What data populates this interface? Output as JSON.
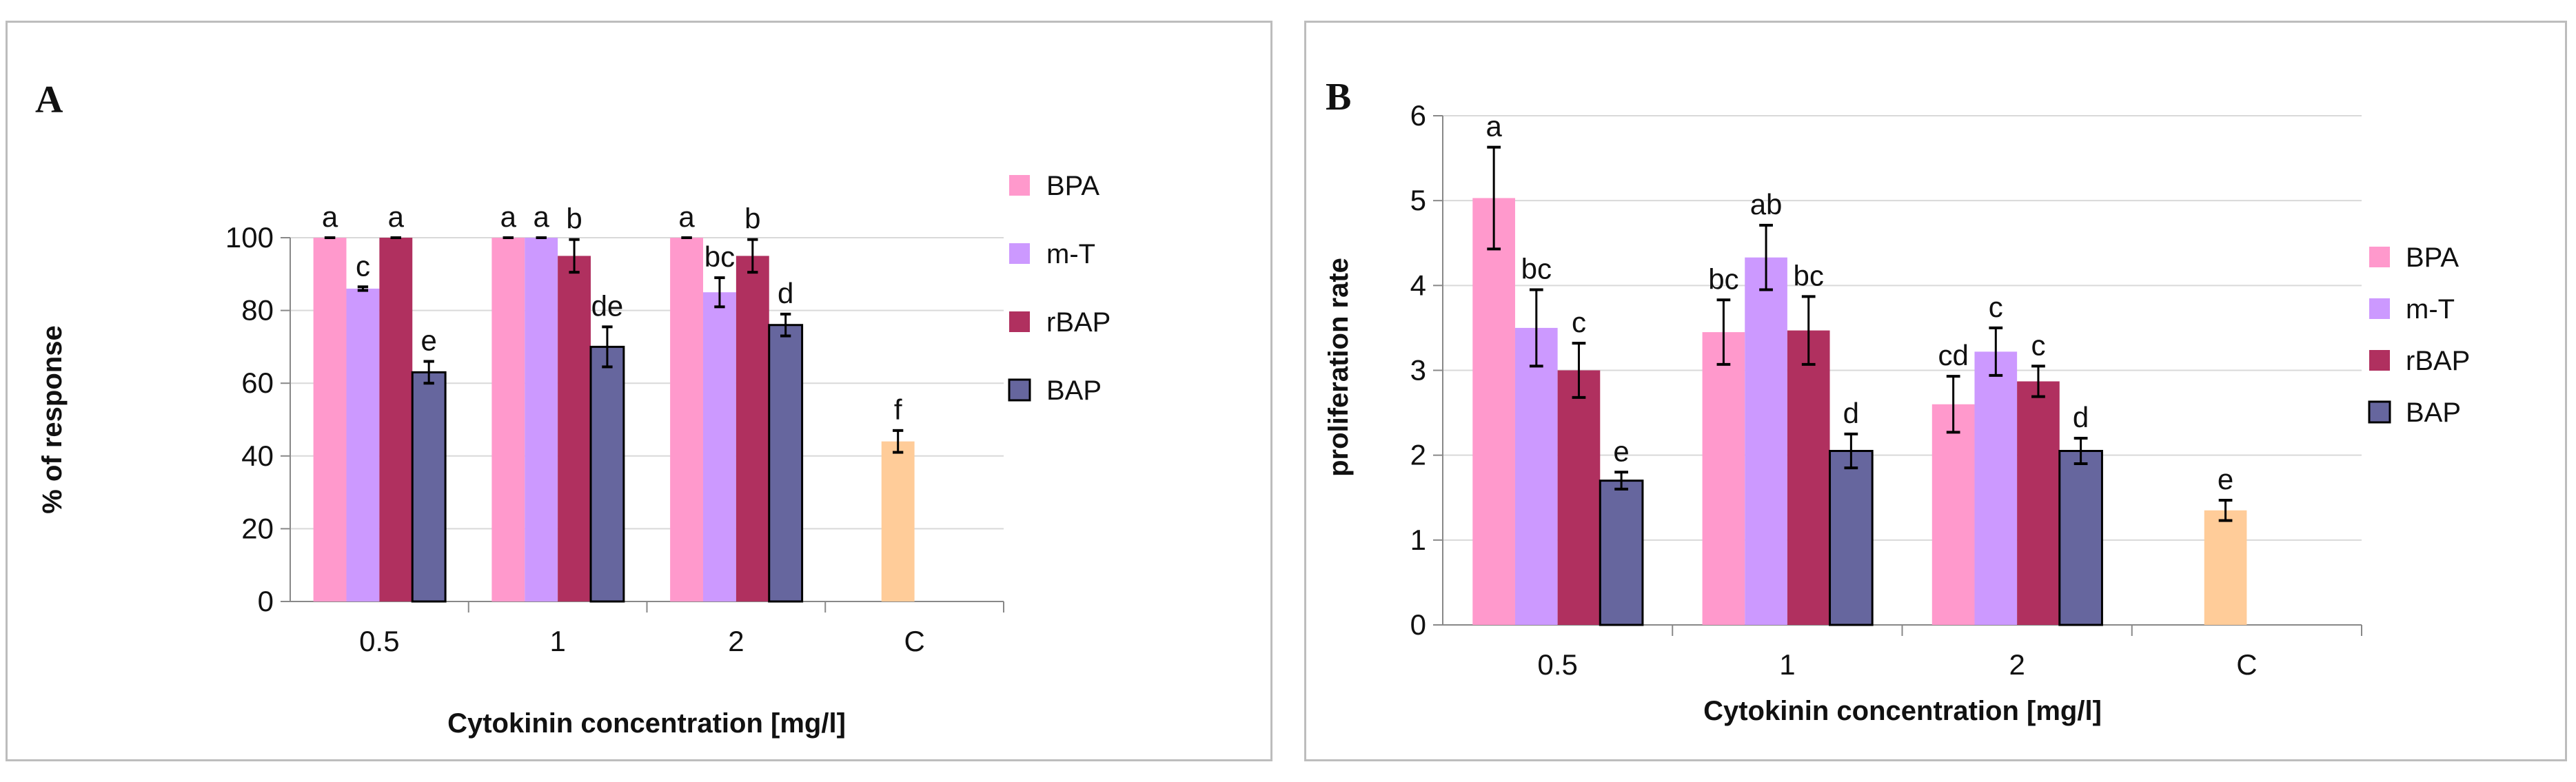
{
  "colors": {
    "BPA": "#ff99cc",
    "m-T": "#cc99ff",
    "rBAP": "#b0305f",
    "BAP": "#66669e",
    "C": "#ffcc99"
  },
  "chart_data": [
    {
      "type": "bar",
      "panel_label": "A",
      "xlabel": "Cytokinin concentration [mg/l]",
      "ylabel": "% of response",
      "ylim": [
        0,
        100
      ],
      "yticks": [
        "0",
        "20",
        "40",
        "60",
        "80",
        "100"
      ],
      "categories": [
        "0.5",
        "1",
        "2",
        "C"
      ],
      "series": [
        {
          "name": "BPA",
          "values": [
            100,
            100,
            100,
            null
          ],
          "errors": [
            0,
            0,
            0,
            null
          ],
          "letters": [
            "a",
            "a",
            "a",
            ""
          ]
        },
        {
          "name": "m-T",
          "values": [
            86,
            100,
            85,
            null
          ],
          "errors": [
            0.5,
            0,
            4,
            null
          ],
          "letters": [
            "c",
            "a",
            "bc",
            ""
          ]
        },
        {
          "name": "rBAP",
          "values": [
            100,
            95,
            95,
            null
          ],
          "errors": [
            0,
            4.5,
            4.5,
            null
          ],
          "letters": [
            "a",
            "b",
            "b",
            ""
          ]
        },
        {
          "name": "BAP",
          "values": [
            63,
            70,
            76,
            null
          ],
          "errors": [
            3,
            5.5,
            3,
            null
          ],
          "letters": [
            "e",
            "de",
            "d",
            ""
          ]
        }
      ],
      "control": {
        "name": "C",
        "value": 44,
        "error": 3,
        "letter": "f"
      },
      "legend": [
        "BPA",
        "m-T",
        "rBAP",
        "BAP"
      ]
    },
    {
      "type": "bar",
      "panel_label": "B",
      "xlabel": "Cytokinin concentration [mg/l]",
      "ylabel": "proliferation rate",
      "ylim": [
        0,
        6
      ],
      "yticks": [
        "0",
        "1",
        "2",
        "3",
        "4",
        "5",
        "6"
      ],
      "categories": [
        "0.5",
        "1",
        "2",
        "C"
      ],
      "series": [
        {
          "name": "BPA",
          "values": [
            5.03,
            3.45,
            2.6,
            null
          ],
          "errors": [
            0.6,
            0.38,
            0.33,
            null
          ],
          "letters": [
            "a",
            "bc",
            "cd",
            ""
          ]
        },
        {
          "name": "m-T",
          "values": [
            3.5,
            4.33,
            3.22,
            null
          ],
          "errors": [
            0.45,
            0.38,
            0.28,
            null
          ],
          "letters": [
            "bc",
            "ab",
            "c",
            ""
          ]
        },
        {
          "name": "rBAP",
          "values": [
            3.0,
            3.47,
            2.87,
            null
          ],
          "errors": [
            0.32,
            0.4,
            0.18,
            null
          ],
          "letters": [
            "c",
            "bc",
            "c",
            ""
          ]
        },
        {
          "name": "BAP",
          "values": [
            1.7,
            2.05,
            2.05,
            null
          ],
          "errors": [
            0.1,
            0.2,
            0.15,
            null
          ],
          "letters": [
            "e",
            "d",
            "d",
            ""
          ]
        }
      ],
      "control": {
        "name": "C",
        "value": 1.35,
        "error": 0.12,
        "letter": "e"
      },
      "legend": [
        "BPA",
        "m-T",
        "rBAP",
        "BAP"
      ]
    }
  ]
}
